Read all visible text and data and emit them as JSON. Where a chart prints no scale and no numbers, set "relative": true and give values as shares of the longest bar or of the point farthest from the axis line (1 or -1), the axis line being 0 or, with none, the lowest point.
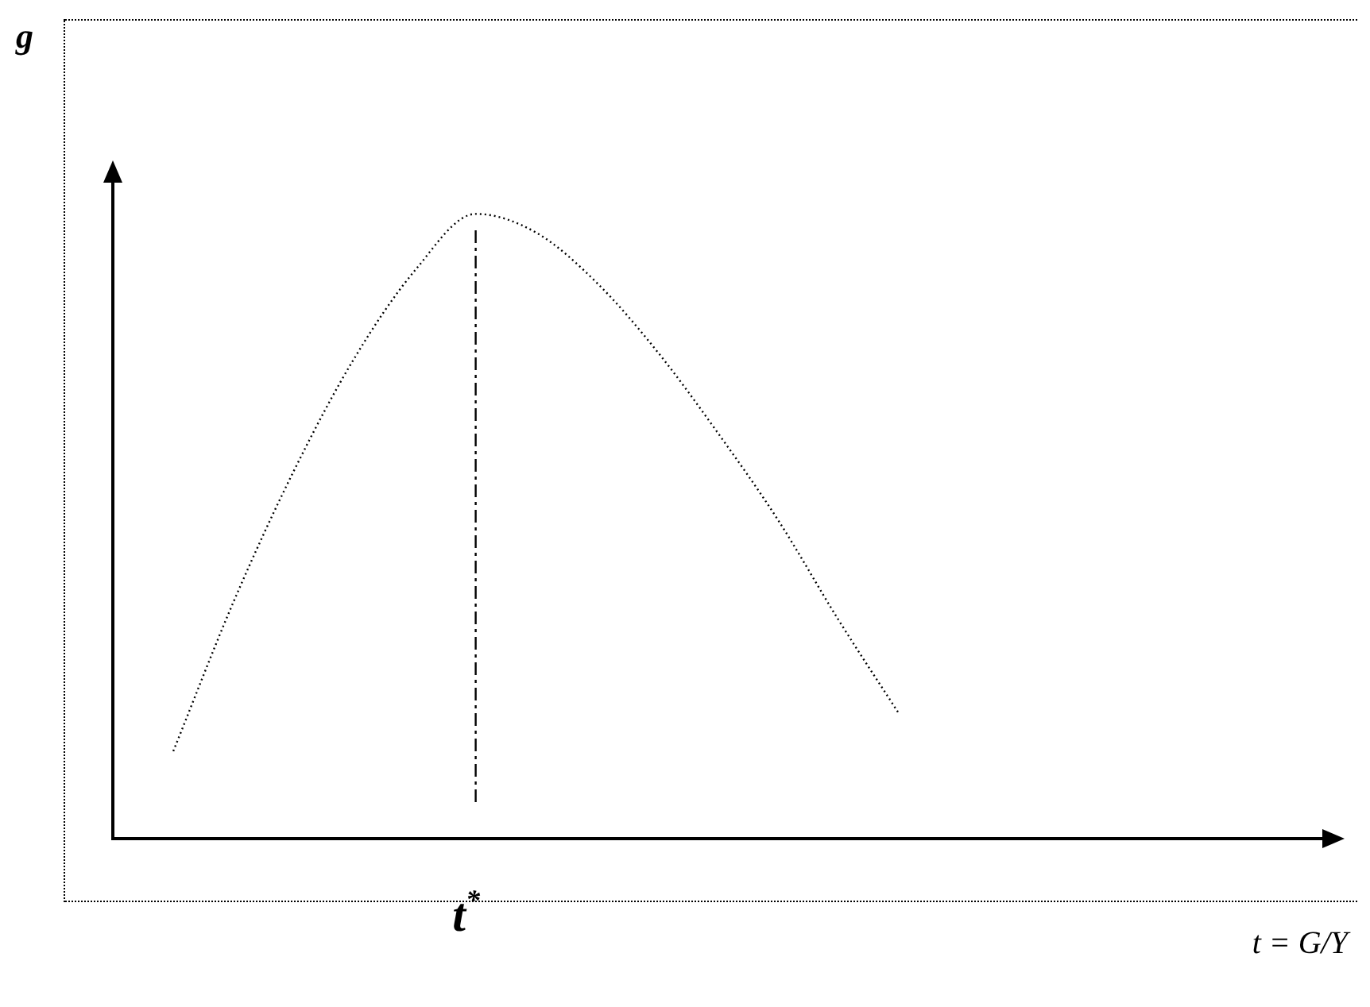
{
  "chart_data": {
    "type": "line",
    "relative": true,
    "xlabel": "t = G/Y",
    "annotations": [
      "g",
      "t$^{*}$"
    ],
    "categories": [
      null,
      null,
      null,
      null,
      null,
      null,
      null,
      null,
      null,
      null,
      null,
      null,
      null,
      null,
      null,
      null,
      null,
      null,
      null,
      null,
      null
    ],
    "series": [
      {
        "color": "#000000",
        "values": [
          null,
          0.14,
          0.38,
          0.59,
          0.77,
          0.91,
          1,
          0.97,
          0.89,
          0.78,
          0.65,
          0.51,
          0.35,
          0.2,
          null,
          null,
          null,
          null,
          null,
          null,
          null
        ]
      }
    ],
    "marker": "none",
    "line_style": "dotted",
    "grid": false,
    "legend": false
  }
}
